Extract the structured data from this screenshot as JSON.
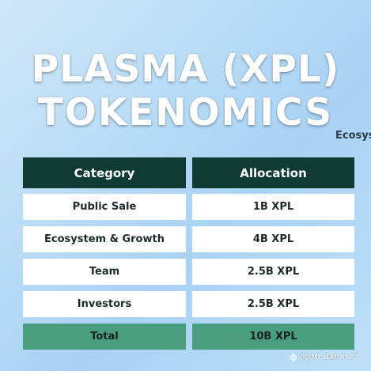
{
  "title": {
    "line1": "PLASMA (XPL)",
    "line2": "TOKENOMICS"
  },
  "side_text": "Ecosys",
  "table": {
    "headers": {
      "category": "Category",
      "allocation": "Allocation"
    },
    "rows": [
      {
        "category": "Public Sale",
        "allocation": "1B XPL"
      },
      {
        "category": "Ecosystem & Growth",
        "allocation": "4B XPL"
      },
      {
        "category": "Team",
        "allocation": "2.5B XPL"
      },
      {
        "category": "Investors",
        "allocation": "2.5B XPL"
      }
    ],
    "total": {
      "category": "Total",
      "allocation": "10B XPL"
    }
  },
  "watermark": {
    "text": "@ Mr Barun c7",
    "icon": "watermark-logo-icon"
  },
  "colors": {
    "header_bg": "#0f3b33",
    "total_bg": "#4a9e80",
    "row_bg": "#ffffff"
  }
}
